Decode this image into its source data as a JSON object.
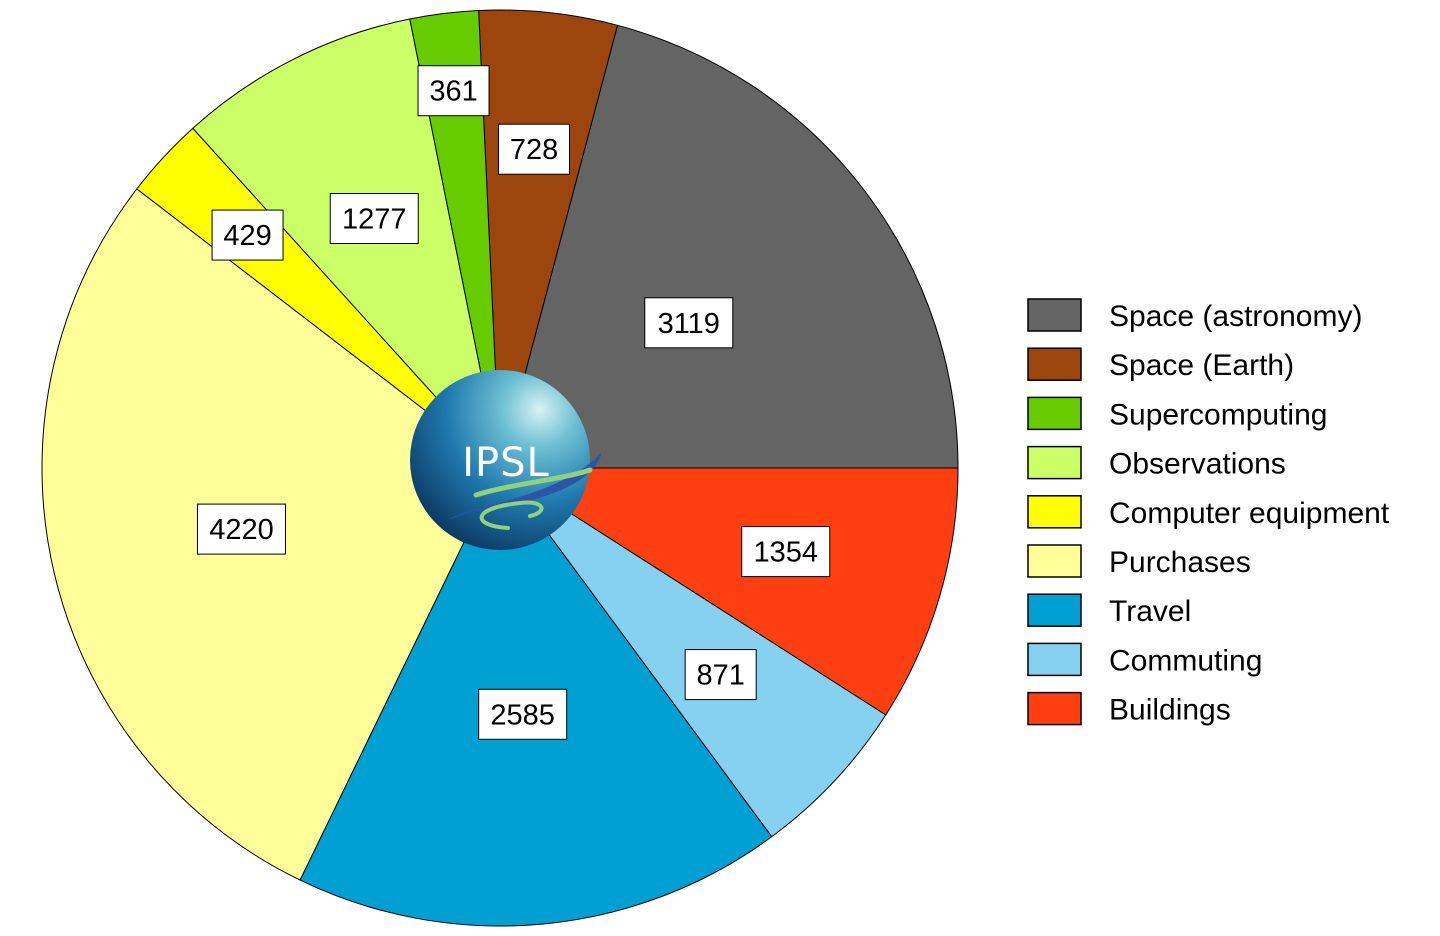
{
  "chart_data": {
    "type": "pie",
    "title": "",
    "start": "east",
    "direction": "counterclockwise",
    "slices": [
      {
        "label": "Space (astronomy)",
        "value": 3119,
        "color": "#646464"
      },
      {
        "label": "Space (Earth)",
        "value": 728,
        "color": "#9C460E"
      },
      {
        "label": "Supercomputing",
        "value": 361,
        "color": "#66CC00"
      },
      {
        "label": "Observations",
        "value": 1277,
        "color": "#CCFF66"
      },
      {
        "label": "Computer equipment",
        "value": 429,
        "color": "#FFFF00"
      },
      {
        "label": "Purchases",
        "value": 4220,
        "color": "#FFFF99"
      },
      {
        "label": "Travel",
        "value": 2585,
        "color": "#00A1D2"
      },
      {
        "label": "Commuting",
        "value": 871,
        "color": "#87D1F0"
      },
      {
        "label": "Buildings",
        "value": 1354,
        "color": "#FF3F0F"
      }
    ],
    "legend": {
      "placement": "right"
    }
  },
  "logo": {
    "text": "IPSL",
    "name": "ipsl-logo"
  }
}
